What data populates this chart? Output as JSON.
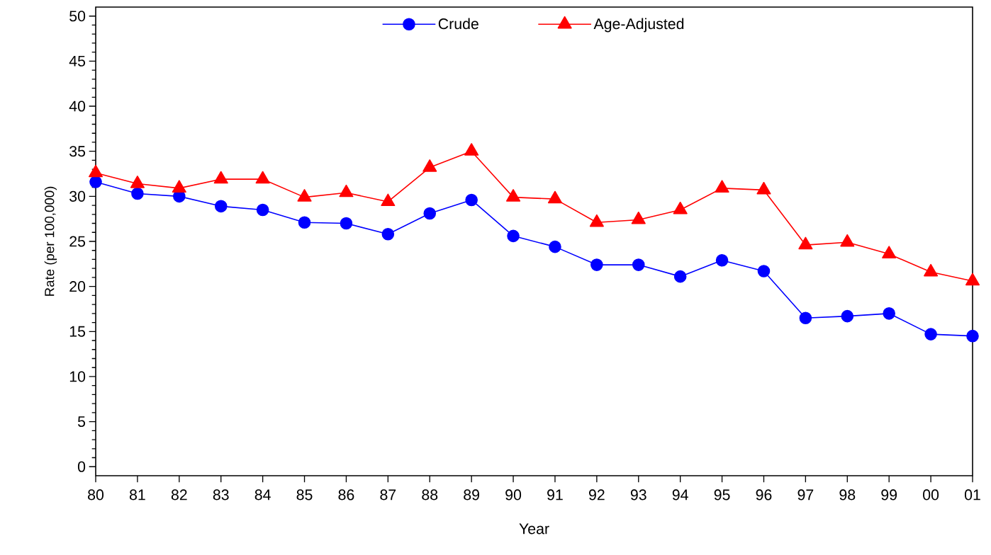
{
  "chart_data": {
    "type": "line",
    "xlabel": "Year",
    "ylabel": "Rate (per 100,000)",
    "categories": [
      "80",
      "81",
      "82",
      "83",
      "84",
      "85",
      "86",
      "87",
      "88",
      "89",
      "90",
      "91",
      "92",
      "93",
      "94",
      "95",
      "96",
      "97",
      "98",
      "99",
      "00",
      "01"
    ],
    "series": [
      {
        "name": "Crude",
        "color": "#0000ff",
        "marker": "circle",
        "values": [
          31.6,
          30.3,
          30.0,
          28.9,
          28.5,
          27.1,
          27.0,
          25.8,
          28.1,
          29.6,
          25.6,
          24.4,
          22.4,
          22.4,
          21.1,
          22.9,
          21.7,
          16.5,
          16.7,
          17.0,
          14.7,
          14.5
        ]
      },
      {
        "name": "Age-Adjusted",
        "color": "#ff0000",
        "marker": "triangle",
        "values": [
          32.6,
          31.4,
          30.9,
          31.9,
          31.9,
          29.9,
          30.4,
          29.4,
          33.2,
          35.0,
          29.9,
          29.7,
          27.1,
          27.4,
          28.5,
          30.9,
          30.7,
          24.6,
          24.9,
          23.6,
          21.6,
          20.6
        ]
      }
    ],
    "ylim": [
      -1,
      51
    ],
    "yticks": [
      0,
      5,
      10,
      15,
      20,
      25,
      30,
      35,
      40,
      45,
      50
    ],
    "legend": "top",
    "grid": false,
    "line_style": "solid"
  }
}
